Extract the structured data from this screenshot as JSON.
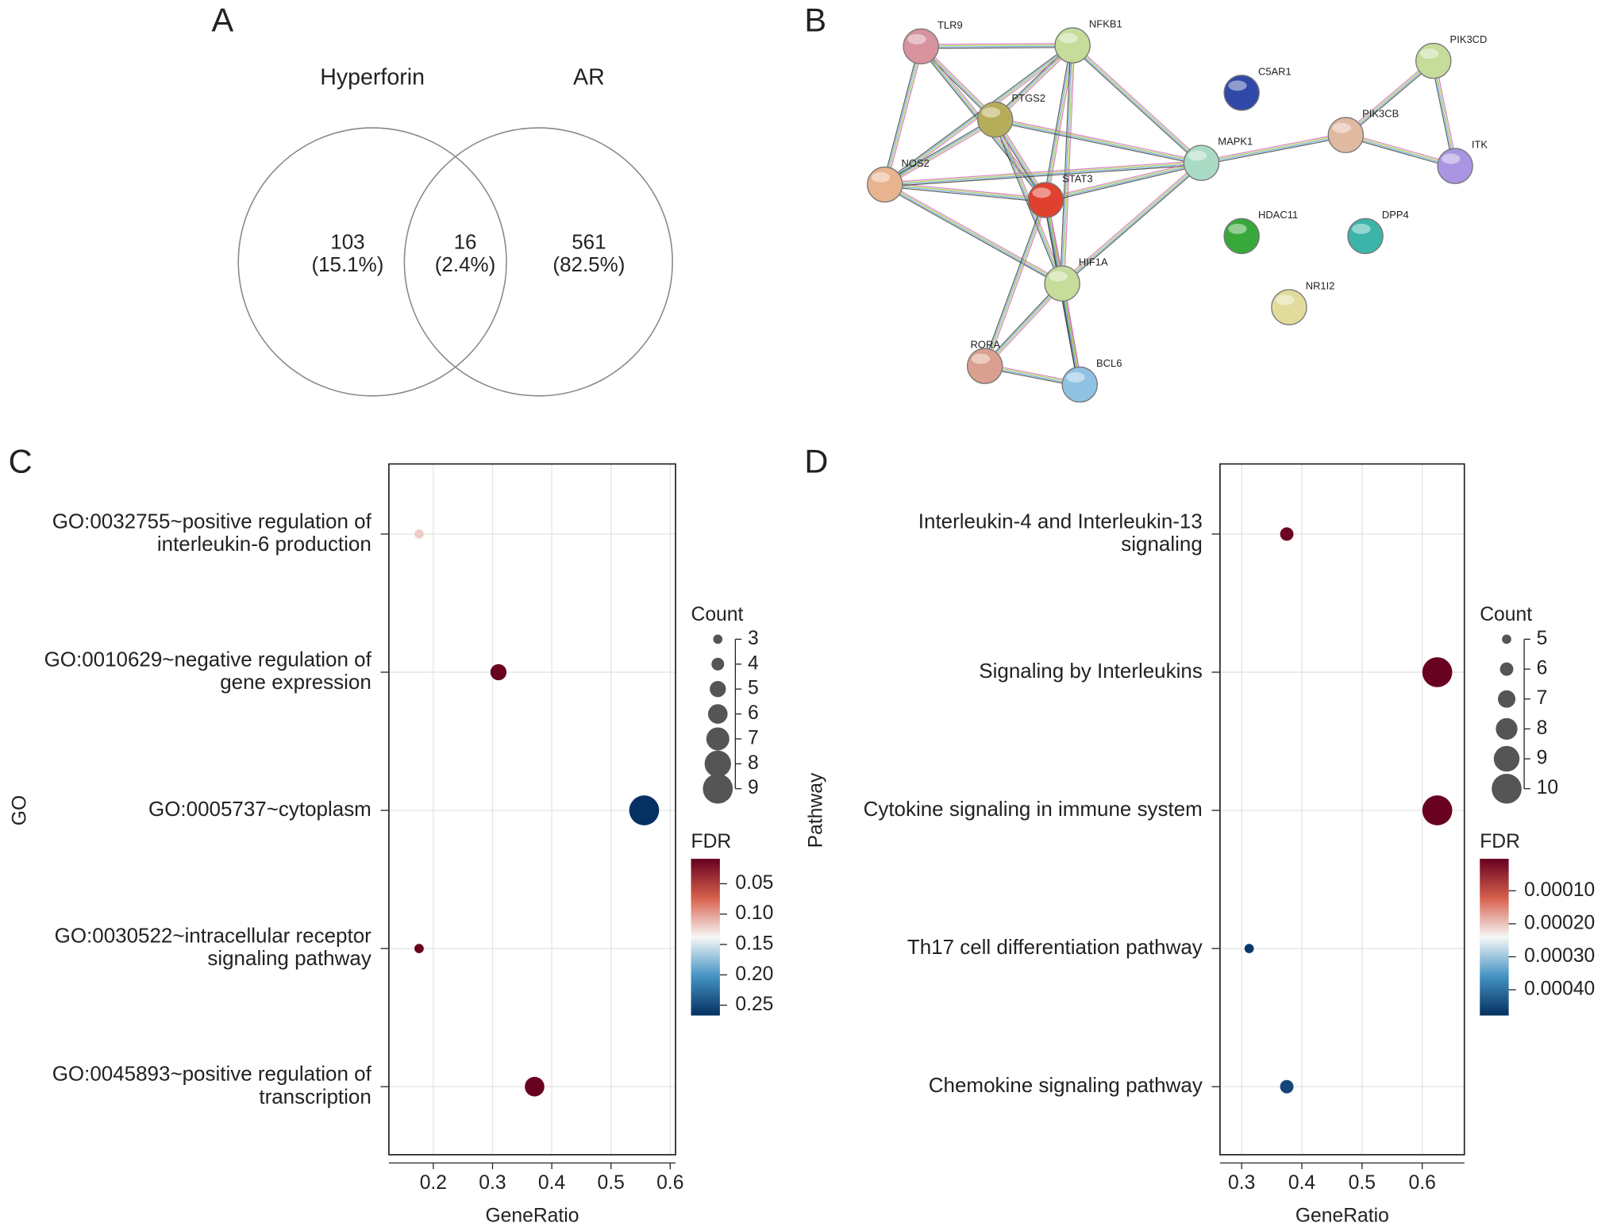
{
  "chart_data": [
    {
      "type": "venn",
      "panel": "A",
      "sets": [
        "Hyperforin",
        "AR"
      ],
      "values": [
        103,
        16,
        561
      ],
      "percentages": [
        15.1,
        2.4,
        82.5
      ],
      "percentage_labels": [
        "(15.1%)",
        "(2.4%)",
        "(82.5%)"
      ]
    },
    {
      "type": "network",
      "panel": "B",
      "nodes": [
        {
          "label": "TLR9",
          "color": "#d7939e"
        },
        {
          "label": "NFKB1",
          "color": "#c5dc9a"
        },
        {
          "label": "PTGS2",
          "color": "#b6ad5a"
        },
        {
          "label": "NOS2",
          "color": "#e7b48f"
        },
        {
          "label": "STAT3",
          "color": "#e0412e"
        },
        {
          "label": "HIF1A",
          "color": "#c5dc9a"
        },
        {
          "label": "RORA",
          "color": "#d9a08f"
        },
        {
          "label": "BCL6",
          "color": "#8fc2e3"
        },
        {
          "label": "MAPK1",
          "color": "#a9dbc4"
        },
        {
          "label": "C5AR1",
          "color": "#3049a8"
        },
        {
          "label": "PIK3CB",
          "color": "#e0b9a1"
        },
        {
          "label": "PIK3CD",
          "color": "#c5dc9a"
        },
        {
          "label": "ITK",
          "color": "#a995e2"
        },
        {
          "label": "HDAC11",
          "color": "#38a83a"
        },
        {
          "label": "DPP4",
          "color": "#3db4aa"
        },
        {
          "label": "NR1I2",
          "color": "#e1dc9c"
        }
      ]
    },
    {
      "type": "dot",
      "panel": "C",
      "categories": [
        [
          "GO:0032755~positive regulation of",
          "interleukin-6 production"
        ],
        [
          "GO:0010629~negative regulation of",
          "gene expression"
        ],
        [
          "GO:0005737~cytoplasm"
        ],
        [
          "GO:0030522~intracellular receptor",
          "signaling pathway"
        ],
        [
          "GO:0045893~positive regulation of",
          "transcription"
        ]
      ],
      "gene_ratio": [
        0.176,
        0.31,
        0.556,
        0.176,
        0.371
      ],
      "count": [
        3,
        5,
        9,
        3,
        6
      ],
      "fdr": [
        0.12,
        0.011,
        0.267,
        0.009,
        0.01
      ],
      "xlabel": "GeneRatio",
      "ylabel": "GO",
      "xlim": [
        0.125,
        0.609
      ],
      "xticks": [
        0.2,
        0.3,
        0.4,
        0.5,
        0.6
      ],
      "grid": true,
      "size_title": "Count",
      "size_ticks": [
        3,
        4,
        5,
        6,
        7,
        8,
        9
      ],
      "color_title": "FDR",
      "color_lim": [
        0.009,
        0.267
      ],
      "color_ticks": [
        0.05,
        {
          "value": 0.1,
          "label": "0.10"
        },
        0.15,
        {
          "value": 0.2,
          "label": "0.20"
        },
        0.25
      ],
      "colormap": [
        "#67001f",
        "#d6604d",
        "#f7f7f7",
        "#4393c3",
        "#053061"
      ]
    },
    {
      "type": "dot",
      "panel": "D",
      "categories": [
        [
          "Interleukin-4 and Interleukin-13",
          "signaling"
        ],
        [
          "Signaling by Interleukins"
        ],
        [
          "Cytokine signaling in immune system"
        ],
        [
          "Th17 cell differentiation pathway"
        ],
        [
          "Chemokine signaling pathway"
        ]
      ],
      "gene_ratio": [
        0.375,
        0.625,
        0.625,
        0.3125,
        0.375
      ],
      "count": [
        6,
        10,
        10,
        5,
        6
      ],
      "fdr": [
        1e-05,
        5e-06,
        5e-06,
        0.00047,
        0.00045
      ],
      "xlabel": "GeneRatio",
      "ylabel": "Pathway",
      "xlim": [
        0.264,
        0.67
      ],
      "xticks": [
        0.3,
        0.4,
        0.5,
        0.6
      ],
      "grid": true,
      "size_title": "Count",
      "size_ticks": [
        5,
        6,
        7,
        8,
        9,
        10
      ],
      "color_title": "FDR",
      "color_lim": [
        3.1e-06,
        0.000478
      ],
      "color_ticks": [
        {
          "value": 0.0001,
          "label": "0.00010"
        },
        {
          "value": 0.0002,
          "label": "0.00020"
        },
        {
          "value": 0.0003,
          "label": "0.00030"
        },
        {
          "value": 0.0004,
          "label": "0.00040"
        }
      ],
      "colormap": [
        "#67001f",
        "#d6604d",
        "#f7f7f7",
        "#4393c3",
        "#053061"
      ]
    }
  ]
}
